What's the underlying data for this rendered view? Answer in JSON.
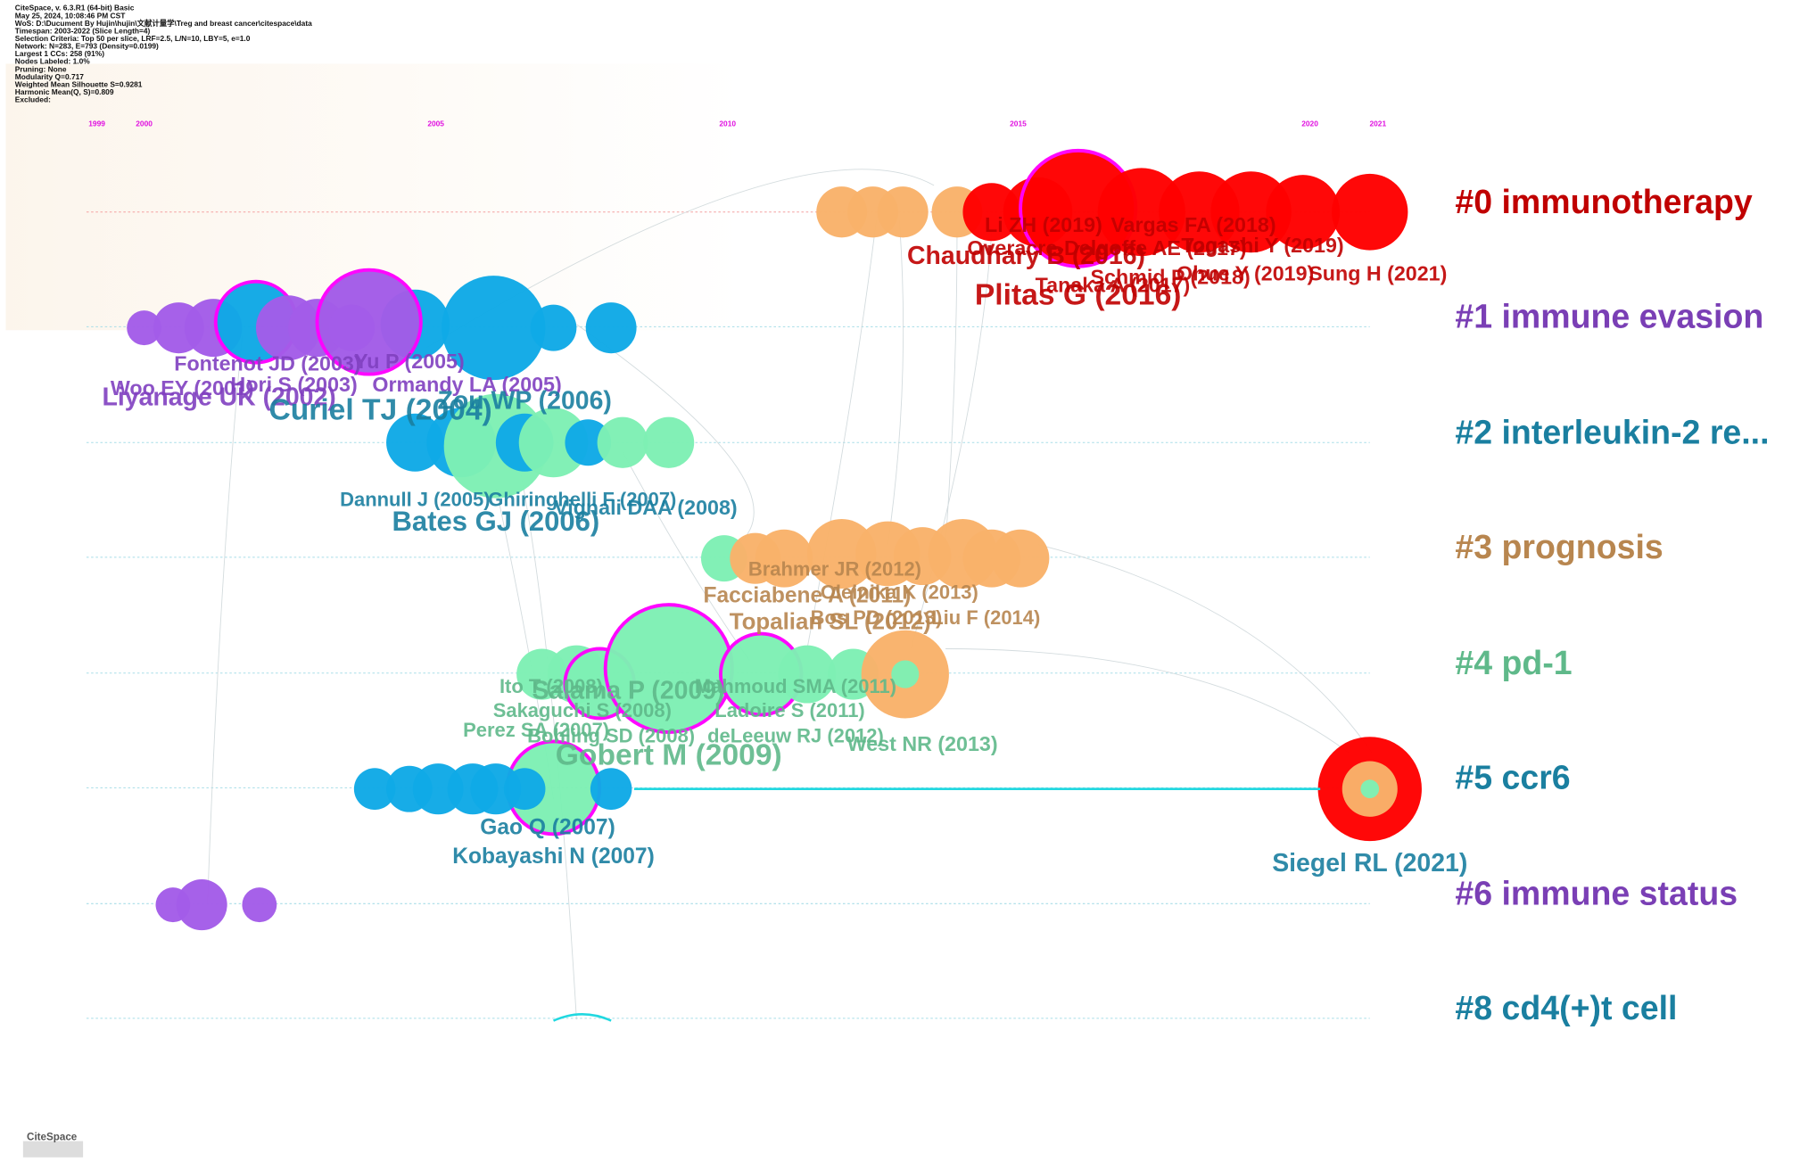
{
  "header": {
    "lines": [
      "CiteSpace, v. 6.3.R1 (64-bit) Basic",
      "May 25, 2024, 10:08:46 PM CST",
      "WoS: D:\\Ducument By Hujin\\hujin\\文献计量学\\Treg and breast cancer\\citespace\\data",
      "Timespan: 2003-2022 (Slice Length=4)",
      "Selection Criteria: Top 50 per slice, LRF=2.5, L/N=10, LBY=5, e=1.0",
      "Network: N=283, E=793 (Density=0.0199)",
      "Largest 1 CCs: 258 (91%)",
      "Nodes Labeled: 1.0%",
      "Pruning: None",
      "Modularity Q=0.717",
      "Weighted Mean Silhouette S=0.9281",
      "Harmonic Mean(Q, S)=0.809",
      "Excluded:"
    ]
  },
  "timeline": {
    "years": [
      "1999",
      "2000",
      "2005",
      "2010",
      "2015",
      "2020",
      "2021"
    ]
  },
  "clusters": [
    "#0 immunotherapy",
    "#1 immune evasion",
    "#2 interleukin-2 re...",
    "#3 prognosis",
    "#4 pd-1",
    "#5 ccr6",
    "#6 immune status",
    "#8 cd4(+)t cell"
  ],
  "node_labels": [
    "Li ZH (2019)",
    "Vargas FA (2018)",
    "Overacre-Delgoffe AE (2017)",
    "Togashi Y (2019)",
    "Chaudhary B (2016)",
    "Schmid P (2018)",
    "Ohue Y (2019)",
    "Sung H (2021)",
    "Tanaka A (2017)",
    "Plitas G (2016)",
    "Fontenot JD (2003)",
    "Yu P (2005)",
    "Woo EY (2001)",
    "Hori S (2003)",
    "Ormandy LA (2005)",
    "Liyanage UK (2002)",
    "Zou WP (2006)",
    "Curiel TJ (2004)",
    "Dannull J (2005)",
    "Ghiringhelli F (2007)",
    "Vignali DAA (2008)",
    "Bates GJ (2006)",
    "Brahmer JR (2012)",
    "Oleinika K (2013)",
    "Facciabene A (2011)",
    "Bos PD (2013)",
    "Liu F (2014)",
    "Topalian SL (2012)",
    "Ito T (2008)",
    "Mahmoud SMA (2011)",
    "Salama P (2009)",
    "Sakaguchi S (2008)",
    "Ladoire S (2011)",
    "Perez SA (2007)",
    "Bohling SD (2008)",
    "deLeeuw RJ (2012)",
    "West NR (2013)",
    "Gobert M (2009)",
    "Gao Q (2007)",
    "Kobayashi N (2007)",
    "Siegel RL (2021)"
  ],
  "logo": "CiteSpace"
}
